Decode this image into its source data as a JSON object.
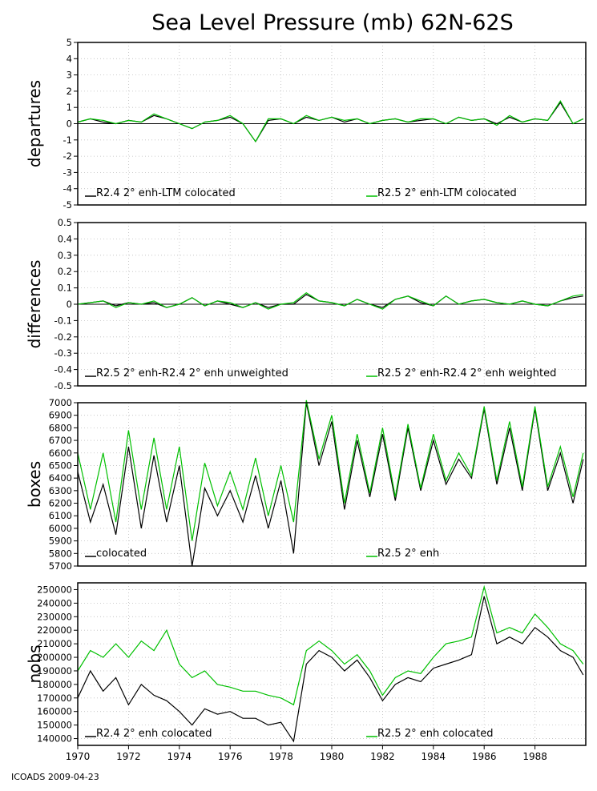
{
  "title": "Sea Level Pressure (mb) 62N-62S",
  "footer": "ICOADS 2009-04-23",
  "colors": {
    "black_series": "#000000",
    "green_series": "#00c000",
    "grid": "#bdbdbd"
  },
  "chart_data": [
    {
      "type": "line",
      "ylabel": "departures",
      "ylim": [
        -5,
        5
      ],
      "yticks": [
        "5",
        "4",
        "3",
        "2",
        "1",
        "0",
        "-1",
        "-2",
        "-3",
        "-4",
        "-5"
      ],
      "xlim": [
        1970,
        1990
      ],
      "xticks": [
        "1970",
        "1972",
        "1974",
        "1976",
        "1978",
        "1980",
        "1982",
        "1984",
        "1986",
        "1988"
      ],
      "zero_line": true,
      "grid": true,
      "series": [
        {
          "name": "R2.4 2° enh-LTM colocated",
          "color": "#000000",
          "x": [
            1970,
            1970.5,
            1971,
            1971.5,
            1972,
            1972.5,
            1973,
            1973.5,
            1974,
            1974.5,
            1975,
            1975.5,
            1976,
            1976.5,
            1977,
            1977.5,
            1978,
            1978.5,
            1979,
            1979.5,
            1980,
            1980.5,
            1981,
            1981.5,
            1982,
            1982.5,
            1983,
            1983.5,
            1984,
            1984.5,
            1985,
            1985.5,
            1986,
            1986.5,
            1987,
            1987.5,
            1988,
            1988.5,
            1989,
            1989.5,
            1989.9
          ],
          "y": [
            0.1,
            0.3,
            0.1,
            0.0,
            0.2,
            0.1,
            0.5,
            0.3,
            0.0,
            -0.3,
            0.1,
            0.2,
            0.4,
            0.0,
            -1.1,
            0.2,
            0.3,
            0.0,
            0.4,
            0.2,
            0.4,
            0.1,
            0.3,
            0.0,
            0.2,
            0.3,
            0.1,
            0.2,
            0.3,
            0.0,
            0.4,
            0.2,
            0.3,
            0.0,
            0.4,
            0.1,
            0.3,
            0.2,
            1.3,
            0.0,
            0.3
          ]
        },
        {
          "name": "R2.5 2° enh-LTM colocated",
          "color": "#00c000",
          "x": [
            1970,
            1970.5,
            1971,
            1971.5,
            1972,
            1972.5,
            1973,
            1973.5,
            1974,
            1974.5,
            1975,
            1975.5,
            1976,
            1976.5,
            1977,
            1977.5,
            1978,
            1978.5,
            1979,
            1979.5,
            1980,
            1980.5,
            1981,
            1981.5,
            1982,
            1982.5,
            1983,
            1983.5,
            1984,
            1984.5,
            1985,
            1985.5,
            1986,
            1986.5,
            1987,
            1987.5,
            1988,
            1988.5,
            1989,
            1989.5,
            1989.9
          ],
          "y": [
            0.1,
            0.3,
            0.2,
            0.0,
            0.2,
            0.1,
            0.6,
            0.3,
            0.0,
            -0.3,
            0.1,
            0.2,
            0.5,
            0.0,
            -1.1,
            0.3,
            0.3,
            0.0,
            0.5,
            0.2,
            0.4,
            0.2,
            0.3,
            0.0,
            0.2,
            0.3,
            0.1,
            0.3,
            0.3,
            0.0,
            0.4,
            0.2,
            0.3,
            -0.1,
            0.5,
            0.1,
            0.3,
            0.2,
            1.4,
            0.0,
            0.3
          ]
        }
      ]
    },
    {
      "type": "line",
      "ylabel": "differences",
      "ylim": [
        -0.5,
        0.5
      ],
      "yticks": [
        "0.5",
        "0.4",
        "0.3",
        "0.2",
        "0.1",
        "0",
        "-0.1",
        "-0.2",
        "-0.3",
        "-0.4",
        "-0.5"
      ],
      "xlim": [
        1970,
        1990
      ],
      "zero_line": true,
      "grid": true,
      "series": [
        {
          "name": "R2.5 2° enh-R2.4 2° enh unweighted",
          "color": "#000000",
          "x": [
            1970,
            1970.5,
            1971,
            1971.5,
            1972,
            1972.5,
            1973,
            1973.5,
            1974,
            1974.5,
            1975,
            1975.5,
            1976,
            1976.5,
            1977,
            1977.5,
            1978,
            1978.5,
            1979,
            1979.5,
            1980,
            1980.5,
            1981,
            1981.5,
            1982,
            1982.5,
            1983,
            1983.5,
            1984,
            1984.5,
            1985,
            1985.5,
            1986,
            1986.5,
            1987,
            1987.5,
            1988,
            1988.5,
            1989,
            1989.5,
            1989.9
          ],
          "y": [
            0.0,
            0.01,
            0.02,
            -0.01,
            0.01,
            0.0,
            0.01,
            -0.02,
            0.0,
            0.04,
            -0.01,
            0.02,
            0.0,
            -0.02,
            0.01,
            -0.02,
            0.0,
            0.0,
            0.06,
            0.02,
            0.01,
            -0.01,
            0.03,
            0.0,
            -0.02,
            0.03,
            0.05,
            0.01,
            -0.01,
            0.05,
            0.0,
            0.02,
            0.03,
            0.01,
            0.0,
            0.02,
            0.0,
            -0.01,
            0.02,
            0.04,
            0.05
          ]
        },
        {
          "name": "R2.5 2° enh-R2.4 2° enh weighted",
          "color": "#00c000",
          "x": [
            1970,
            1970.5,
            1971,
            1971.5,
            1972,
            1972.5,
            1973,
            1973.5,
            1974,
            1974.5,
            1975,
            1975.5,
            1976,
            1976.5,
            1977,
            1977.5,
            1978,
            1978.5,
            1979,
            1979.5,
            1980,
            1980.5,
            1981,
            1981.5,
            1982,
            1982.5,
            1983,
            1983.5,
            1984,
            1984.5,
            1985,
            1985.5,
            1986,
            1986.5,
            1987,
            1987.5,
            1988,
            1988.5,
            1989,
            1989.5,
            1989.9
          ],
          "y": [
            0.0,
            0.01,
            0.02,
            -0.02,
            0.01,
            0.0,
            0.02,
            -0.02,
            0.0,
            0.04,
            -0.01,
            0.02,
            0.01,
            -0.02,
            0.01,
            -0.03,
            0.0,
            0.01,
            0.07,
            0.02,
            0.01,
            -0.01,
            0.03,
            0.0,
            -0.03,
            0.03,
            0.05,
            0.02,
            -0.01,
            0.05,
            0.0,
            0.02,
            0.03,
            0.01,
            0.0,
            0.02,
            0.0,
            -0.01,
            0.02,
            0.05,
            0.06
          ]
        }
      ]
    },
    {
      "type": "line",
      "ylabel": "boxes",
      "ylim": [
        5700,
        7000
      ],
      "yticks": [
        "7000",
        "6900",
        "6800",
        "6700",
        "6600",
        "6500",
        "6400",
        "6300",
        "6200",
        "6100",
        "6000",
        "5900",
        "5800",
        "5700"
      ],
      "xlim": [
        1970,
        1990
      ],
      "zero_line": false,
      "grid": true,
      "series": [
        {
          "name": "colocated",
          "color": "#000000",
          "x": [
            1970,
            1970.5,
            1971,
            1971.5,
            1972,
            1972.5,
            1973,
            1973.5,
            1974,
            1974.5,
            1975,
            1975.5,
            1976,
            1976.5,
            1977,
            1977.5,
            1978,
            1978.5,
            1979,
            1979.5,
            1980,
            1980.5,
            1981,
            1981.5,
            1982,
            1982.5,
            1983,
            1983.5,
            1984,
            1984.5,
            1985,
            1985.5,
            1986,
            1986.5,
            1987,
            1987.5,
            1988,
            1988.5,
            1989,
            1989.5,
            1989.9
          ],
          "y": [
            6450,
            6050,
            6350,
            5950,
            6650,
            6000,
            6580,
            6050,
            6500,
            5700,
            6320,
            6100,
            6300,
            6050,
            6420,
            6000,
            6380,
            5800,
            7000,
            6500,
            6850,
            6150,
            6700,
            6250,
            6750,
            6220,
            6800,
            6300,
            6700,
            6350,
            6550,
            6400,
            6950,
            6350,
            6800,
            6300,
            6950,
            6300,
            6600,
            6200,
            6550
          ]
        },
        {
          "name": "R2.5 2° enh",
          "color": "#00c000",
          "x": [
            1970,
            1970.5,
            1971,
            1971.5,
            1972,
            1972.5,
            1973,
            1973.5,
            1974,
            1974.5,
            1975,
            1975.5,
            1976,
            1976.5,
            1977,
            1977.5,
            1978,
            1978.5,
            1979,
            1979.5,
            1980,
            1980.5,
            1981,
            1981.5,
            1982,
            1982.5,
            1983,
            1983.5,
            1984,
            1984.5,
            1985,
            1985.5,
            1986,
            1986.5,
            1987,
            1987.5,
            1988,
            1988.5,
            1989,
            1989.5,
            1989.9
          ],
          "y": [
            6600,
            6150,
            6600,
            6050,
            6780,
            6150,
            6720,
            6150,
            6650,
            5900,
            6520,
            6180,
            6450,
            6150,
            6560,
            6100,
            6500,
            6050,
            7020,
            6550,
            6900,
            6200,
            6750,
            6280,
            6800,
            6250,
            6830,
            6320,
            6750,
            6380,
            6600,
            6420,
            6970,
            6380,
            6850,
            6330,
            6970,
            6330,
            6650,
            6250,
            6600
          ]
        }
      ]
    },
    {
      "type": "line",
      "ylabel": "nobs",
      "ylim": [
        135000,
        255000
      ],
      "yticks": [
        "250000",
        "240000",
        "230000",
        "220000",
        "210000",
        "200000",
        "190000",
        "180000",
        "170000",
        "160000",
        "150000",
        "140000"
      ],
      "xlim": [
        1970,
        1990
      ],
      "zero_line": false,
      "grid": true,
      "series": [
        {
          "name": "R2.4 2° enh colocated",
          "color": "#000000",
          "x": [
            1970,
            1970.5,
            1971,
            1971.5,
            1972,
            1972.5,
            1973,
            1973.5,
            1974,
            1974.5,
            1975,
            1975.5,
            1976,
            1976.5,
            1977,
            1977.5,
            1978,
            1978.5,
            1979,
            1979.5,
            1980,
            1980.5,
            1981,
            1981.5,
            1982,
            1982.5,
            1983,
            1983.5,
            1984,
            1984.5,
            1985,
            1985.5,
            1986,
            1986.5,
            1987,
            1987.5,
            1988,
            1988.5,
            1989,
            1989.5,
            1989.9
          ],
          "y": [
            170000,
            190000,
            175000,
            185000,
            165000,
            180000,
            172000,
            168000,
            160000,
            150000,
            162000,
            158000,
            160000,
            155000,
            155000,
            150000,
            152000,
            138000,
            195000,
            205000,
            200000,
            190000,
            198000,
            185000,
            168000,
            180000,
            185000,
            182000,
            192000,
            195000,
            198000,
            202000,
            245000,
            210000,
            215000,
            210000,
            222000,
            215000,
            205000,
            200000,
            187000
          ]
        },
        {
          "name": "R2.5 2° enh colocated",
          "color": "#00c000",
          "x": [
            1970,
            1970.5,
            1971,
            1971.5,
            1972,
            1972.5,
            1973,
            1973.5,
            1974,
            1974.5,
            1975,
            1975.5,
            1976,
            1976.5,
            1977,
            1977.5,
            1978,
            1978.5,
            1979,
            1979.5,
            1980,
            1980.5,
            1981,
            1981.5,
            1982,
            1982.5,
            1983,
            1983.5,
            1984,
            1984.5,
            1985,
            1985.5,
            1986,
            1986.5,
            1987,
            1987.5,
            1988,
            1988.5,
            1989,
            1989.5,
            1989.9
          ],
          "y": [
            190000,
            205000,
            200000,
            210000,
            200000,
            212000,
            205000,
            220000,
            195000,
            185000,
            190000,
            180000,
            178000,
            175000,
            175000,
            172000,
            170000,
            165000,
            205000,
            212000,
            205000,
            195000,
            202000,
            190000,
            172000,
            185000,
            190000,
            188000,
            200000,
            210000,
            212000,
            215000,
            252000,
            218000,
            222000,
            218000,
            232000,
            222000,
            210000,
            205000,
            195000
          ]
        }
      ]
    }
  ]
}
